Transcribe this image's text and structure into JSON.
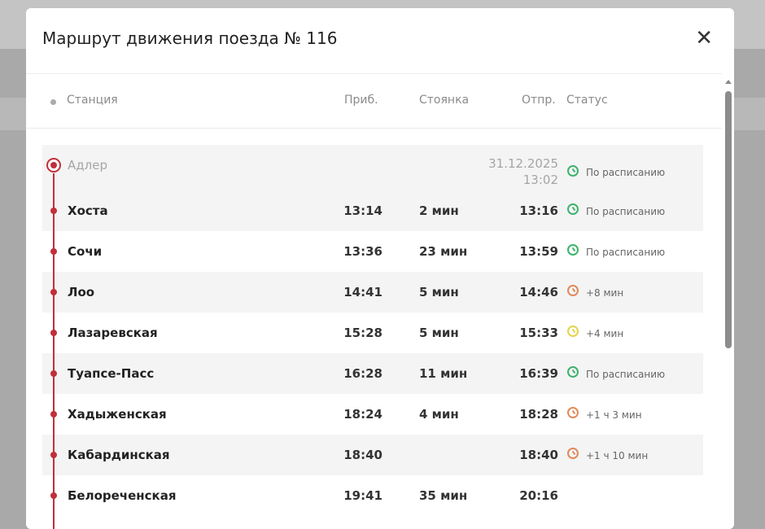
{
  "dialog": {
    "title": "Маршрут движения поезда № 116",
    "close_icon": "close-icon"
  },
  "columns": {
    "station": "Станция",
    "arrival": "Приб.",
    "stop": "Стоянка",
    "departure": "Отпр.",
    "status": "Статус"
  },
  "status_colors": {
    "on_time": "#3db36b",
    "late": "#e08a5a",
    "slight": "#e6d34a"
  },
  "origin": {
    "name": "Адлер",
    "departure_date": "31.12.2025",
    "departure_time": "13:02",
    "status": "По расписанию",
    "status_type": "on_time"
  },
  "stops": [
    {
      "name": "Хоста",
      "arrival": "13:14",
      "stop": "2 мин",
      "departure": "13:16",
      "status": "По расписанию",
      "status_type": "on_time"
    },
    {
      "name": "Сочи",
      "arrival": "13:36",
      "stop": "23 мин",
      "departure": "13:59",
      "status": "По расписанию",
      "status_type": "on_time"
    },
    {
      "name": "Лоо",
      "arrival": "14:41",
      "stop": "5 мин",
      "departure": "14:46",
      "status": "+8 мин",
      "status_type": "late"
    },
    {
      "name": "Лазаревская",
      "arrival": "15:28",
      "stop": "5 мин",
      "departure": "15:33",
      "status": "+4 мин",
      "status_type": "slight"
    },
    {
      "name": "Туапсе-Пасс",
      "arrival": "16:28",
      "stop": "11 мин",
      "departure": "16:39",
      "status": "По расписанию",
      "status_type": "on_time"
    },
    {
      "name": "Хадыженская",
      "arrival": "18:24",
      "stop": "4 мин",
      "departure": "18:28",
      "status": "+1 ч 3 мин",
      "status_type": "late"
    },
    {
      "name": "Кабардинская",
      "arrival": "18:40",
      "stop": "",
      "departure": "18:40",
      "status": "+1 ч 10 мин",
      "status_type": "late"
    },
    {
      "name": "Белореченская",
      "arrival": "19:41",
      "stop": "35 мин",
      "departure": "20:16",
      "status": "",
      "status_type": ""
    }
  ]
}
